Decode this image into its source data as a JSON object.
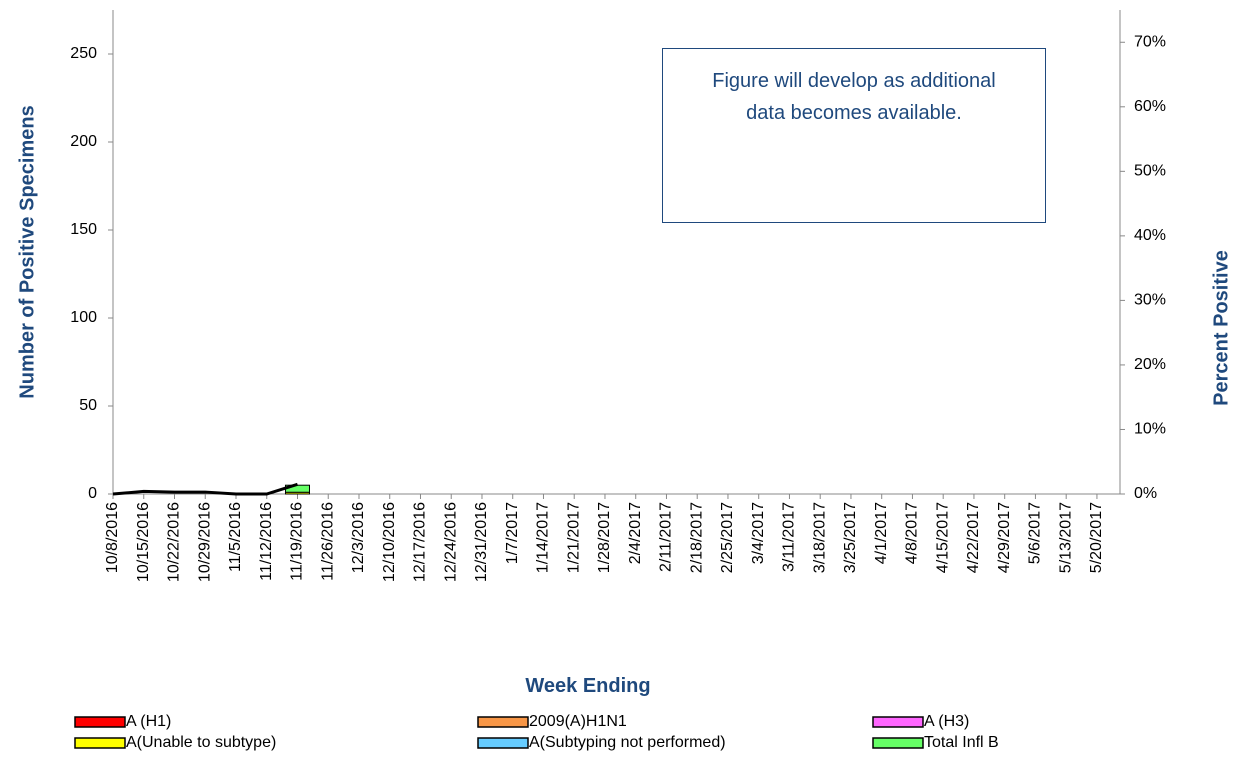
{
  "chart_data": {
    "type": "bar",
    "stacked": true,
    "y_label": "Number of  Positive Specimens",
    "y2_label": "Percent Positive",
    "x_label": "Week Ending",
    "annotation": "Figure will develop as additional data becomes available.",
    "categories": [
      "10/8/2016",
      "10/15/2016",
      "10/22/2016",
      "10/29/2016",
      "11/5/2016",
      "11/12/2016",
      "11/19/2016",
      "11/26/2016",
      "12/3/2016",
      "12/10/2016",
      "12/17/2016",
      "12/24/2016",
      "12/31/2016",
      "1/7/2017",
      "1/14/2017",
      "1/21/2017",
      "1/28/2017",
      "2/4/2017",
      "2/11/2017",
      "2/18/2017",
      "2/25/2017",
      "3/4/2017",
      "3/11/2017",
      "3/18/2017",
      "3/25/2017",
      "4/1/2017",
      "4/8/2017",
      "4/15/2017",
      "4/22/2017",
      "4/29/2017",
      "5/6/2017",
      "5/13/2017",
      "5/20/2017"
    ],
    "series": [
      {
        "name": "A (H1)",
        "color": "#ff0000",
        "values": [
          0,
          0,
          0,
          0,
          0,
          0,
          0,
          null,
          null,
          null,
          null,
          null,
          null,
          null,
          null,
          null,
          null,
          null,
          null,
          null,
          null,
          null,
          null,
          null,
          null,
          null,
          null,
          null,
          null,
          null,
          null,
          null,
          null
        ]
      },
      {
        "name": "2009(A)H1N1",
        "color": "#f79646",
        "values": [
          0,
          0,
          0,
          0,
          0,
          0,
          0,
          null,
          null,
          null,
          null,
          null,
          null,
          null,
          null,
          null,
          null,
          null,
          null,
          null,
          null,
          null,
          null,
          null,
          null,
          null,
          null,
          null,
          null,
          null,
          null,
          null,
          null
        ]
      },
      {
        "name": "A (H3)",
        "color": "#ff66ff",
        "values": [
          0,
          0,
          0,
          0,
          0,
          0,
          0,
          null,
          null,
          null,
          null,
          null,
          null,
          null,
          null,
          null,
          null,
          null,
          null,
          null,
          null,
          null,
          null,
          null,
          null,
          null,
          null,
          null,
          null,
          null,
          null,
          null,
          null
        ]
      },
      {
        "name": "A(Unable to subtype)",
        "color": "#ffff00",
        "values": [
          0,
          0,
          0,
          0,
          0,
          0,
          1,
          null,
          null,
          null,
          null,
          null,
          null,
          null,
          null,
          null,
          null,
          null,
          null,
          null,
          null,
          null,
          null,
          null,
          null,
          null,
          null,
          null,
          null,
          null,
          null,
          null,
          null
        ]
      },
      {
        "name": "A(Subtyping not performed)",
        "color": "#66ccff",
        "values": [
          0,
          0,
          0,
          0,
          0,
          0,
          0,
          null,
          null,
          null,
          null,
          null,
          null,
          null,
          null,
          null,
          null,
          null,
          null,
          null,
          null,
          null,
          null,
          null,
          null,
          null,
          null,
          null,
          null,
          null,
          null,
          null,
          null
        ]
      },
      {
        "name": "Total Infl B",
        "color": "#66ff66",
        "values": [
          0,
          0,
          0,
          0,
          0,
          0,
          4,
          null,
          null,
          null,
          null,
          null,
          null,
          null,
          null,
          null,
          null,
          null,
          null,
          null,
          null,
          null,
          null,
          null,
          null,
          null,
          null,
          null,
          null,
          null,
          null,
          null,
          null
        ]
      }
    ],
    "line": {
      "color": "#000000",
      "axis": "y2",
      "values": [
        0,
        0.4,
        0.3,
        0.3,
        0,
        0,
        1.5,
        null,
        null,
        null,
        null,
        null,
        null,
        null,
        null,
        null,
        null,
        null,
        null,
        null,
        null,
        null,
        null,
        null,
        null,
        null,
        null,
        null,
        null,
        null,
        null,
        null,
        null
      ]
    },
    "ylim": [
      0,
      275
    ],
    "yticks": [
      0,
      50,
      100,
      150,
      200,
      250
    ],
    "y2lim": [
      0,
      75
    ],
    "y2ticks": [
      {
        "value": 0,
        "label": "0%"
      },
      {
        "value": 10,
        "label": "10%"
      },
      {
        "value": 20,
        "label": "20%"
      },
      {
        "value": 30,
        "label": "30%"
      },
      {
        "value": 40,
        "label": "40%"
      },
      {
        "value": 50,
        "label": "50%"
      },
      {
        "value": 60,
        "label": "60%"
      },
      {
        "value": 70,
        "label": "70%"
      }
    ],
    "grid": false
  }
}
